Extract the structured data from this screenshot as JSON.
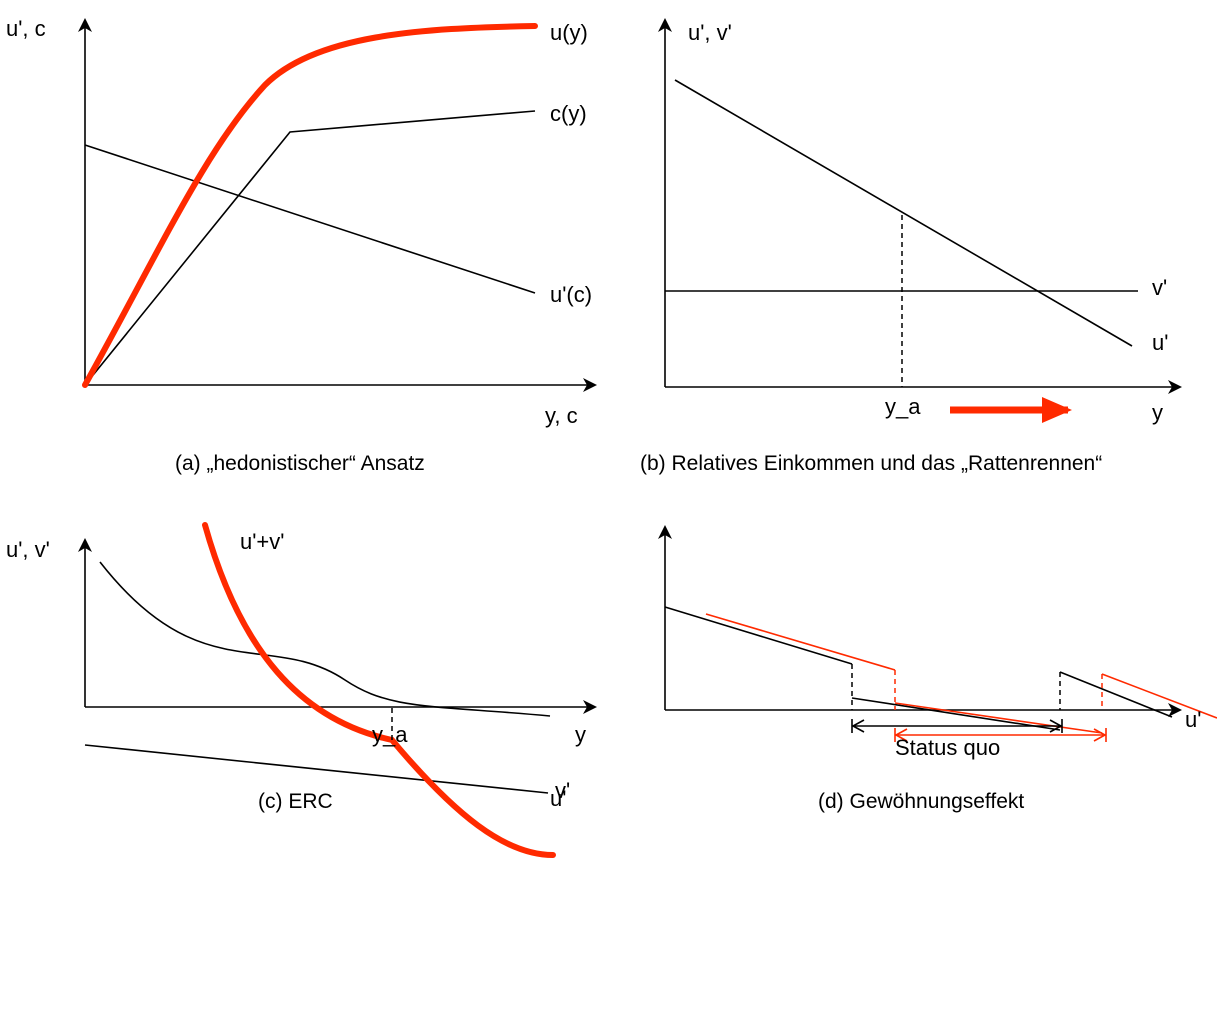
{
  "panel_a": {
    "y_axis_label": "u', c",
    "x_axis_label": "y, c",
    "curve_u_label": "u(y)",
    "curve_c_label": "c(y)",
    "curve_uprime_label": "u'(c)",
    "caption": "(a) „hedonistischer“ Ansatz"
  },
  "panel_b": {
    "y_axis_label": "u', v'",
    "x_axis_label": "y",
    "v_label": "v'",
    "u_label": "u'",
    "ya_label": "y_a",
    "caption": "(b) Relatives Einkommen und das „Rattenrennen“"
  },
  "panel_c": {
    "y_axis_label": "u', v'",
    "x_axis_label": "y",
    "sum_label": "u'+v'",
    "u_label": "u'",
    "v_label": "v'",
    "ya_label": "y_a",
    "caption": "(c) ERC"
  },
  "panel_d": {
    "u_label": "u'",
    "status_quo_label": "Status quo",
    "caption": "(d) Gewöhnungseffekt"
  },
  "colors": {
    "highlight": "#ff2a00",
    "ink": "#000000"
  }
}
